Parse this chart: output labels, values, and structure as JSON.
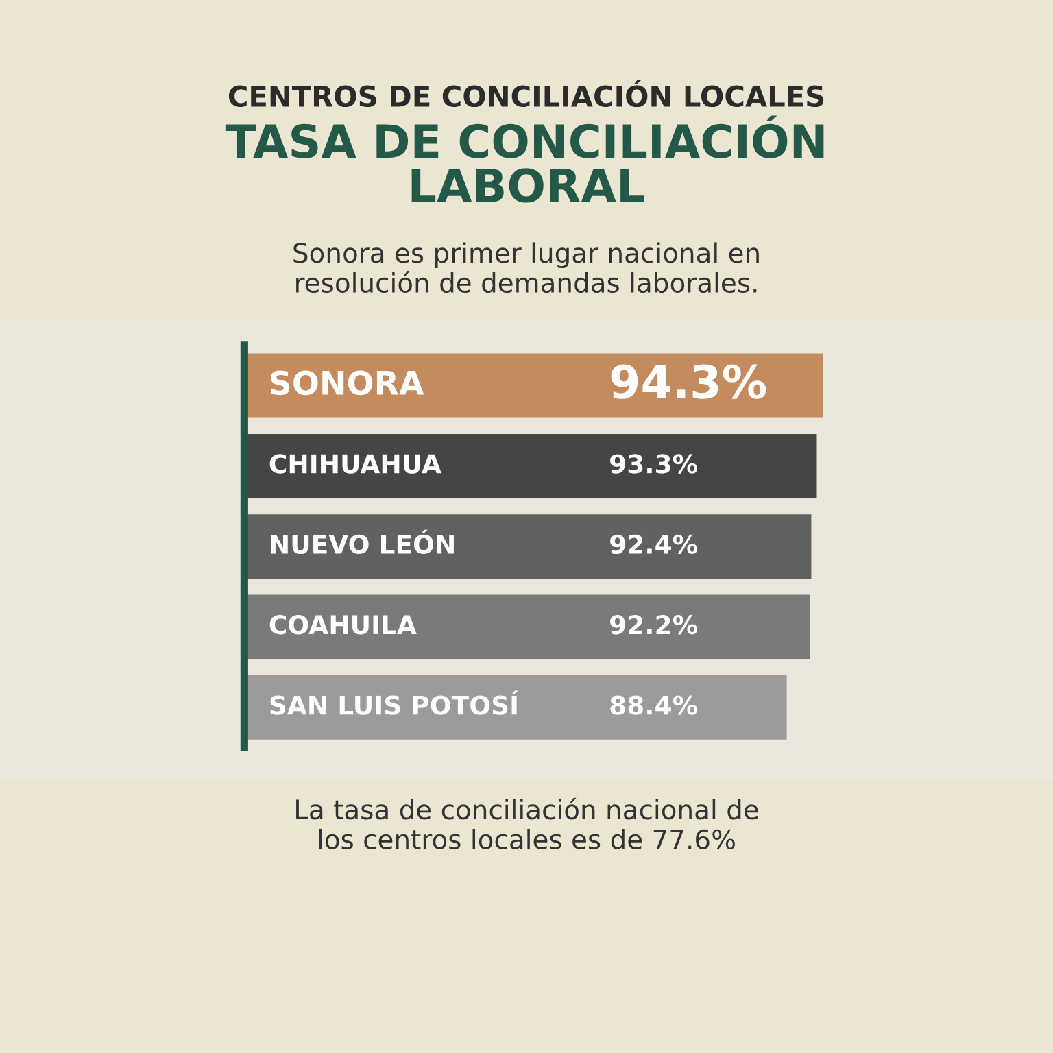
{
  "chart_data": {
    "type": "bar",
    "orientation": "horizontal",
    "subtitle": "CENTROS DE CONCILIACIÓN LOCALES",
    "title": "TASA DE CONCILIACIÓN\nLABORAL",
    "annotations": [
      "Sonora es primer lugar nacional en\nresolución de demandas laborales.",
      "La tasa de conciliación nacional de\nlos centros locales es de 77.6%"
    ],
    "categories": [
      "SONORA",
      "CHIHUAHUA",
      "NUEVO LEÓN",
      "COAHUILA",
      "SAN LUIS POTOSÍ"
    ],
    "values": [
      94.3,
      93.3,
      92.4,
      92.2,
      88.4
    ],
    "colors": [
      "#c48c5e",
      "#454545",
      "#616161",
      "#7a7a7a",
      "#9b9b9b"
    ],
    "value_labels": [
      "94.3%",
      "93.3%",
      "92.4%",
      "92.2%",
      "88.4%"
    ],
    "legend": false
  }
}
